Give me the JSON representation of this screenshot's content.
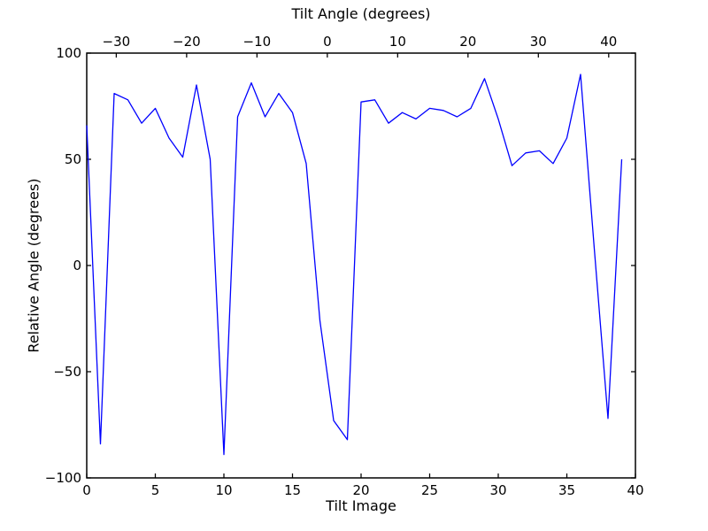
{
  "figure": {
    "background": "#ffffff",
    "spine_color": "#000000"
  },
  "chart_data": {
    "type": "line",
    "title": "",
    "top_xlabel": "Tilt Angle (degrees)",
    "xlabel": "Tilt Image",
    "ylabel": "Relative Angle (degrees)",
    "line_color": "#0000ff",
    "grid": false,
    "legend": null,
    "xlim": [
      0,
      40
    ],
    "ylim": [
      -100,
      100
    ],
    "top_xlim": [
      -34.2,
      43.8
    ],
    "x": [
      0,
      1,
      2,
      3,
      4,
      5,
      6,
      7,
      8,
      9,
      10,
      11,
      12,
      13,
      14,
      15,
      16,
      17,
      18,
      19,
      20,
      21,
      22,
      23,
      24,
      25,
      26,
      27,
      28,
      29,
      30,
      31,
      32,
      33,
      34,
      35,
      36,
      37,
      38,
      39
    ],
    "y": [
      66,
      -84,
      81,
      78,
      67,
      74,
      60,
      51,
      85,
      50,
      -89,
      70,
      86,
      70,
      81,
      72,
      48,
      -26,
      -73,
      -82,
      77,
      78,
      67,
      72,
      69,
      74,
      73,
      70,
      74,
      88,
      69,
      47,
      53,
      54,
      48,
      60,
      90,
      8,
      -72,
      50
    ],
    "x_ticks": [
      {
        "v": 0,
        "label": "0"
      },
      {
        "v": 5,
        "label": "5"
      },
      {
        "v": 10,
        "label": "10"
      },
      {
        "v": 15,
        "label": "15"
      },
      {
        "v": 20,
        "label": "20"
      },
      {
        "v": 25,
        "label": "25"
      },
      {
        "v": 30,
        "label": "30"
      },
      {
        "v": 35,
        "label": "35"
      },
      {
        "v": 40,
        "label": "40"
      }
    ],
    "top_ticks": [
      {
        "v": -30,
        "label": "−30"
      },
      {
        "v": -20,
        "label": "−20"
      },
      {
        "v": -10,
        "label": "−10"
      },
      {
        "v": 0,
        "label": "0"
      },
      {
        "v": 10,
        "label": "10"
      },
      {
        "v": 20,
        "label": "20"
      },
      {
        "v": 30,
        "label": "30"
      },
      {
        "v": 40,
        "label": "40"
      }
    ],
    "y_ticks": [
      {
        "v": 100,
        "label": "100"
      },
      {
        "v": 50,
        "label": "50"
      },
      {
        "v": 0,
        "label": "0"
      },
      {
        "v": -50,
        "label": "−50"
      },
      {
        "v": -100,
        "label": "−100"
      }
    ]
  }
}
